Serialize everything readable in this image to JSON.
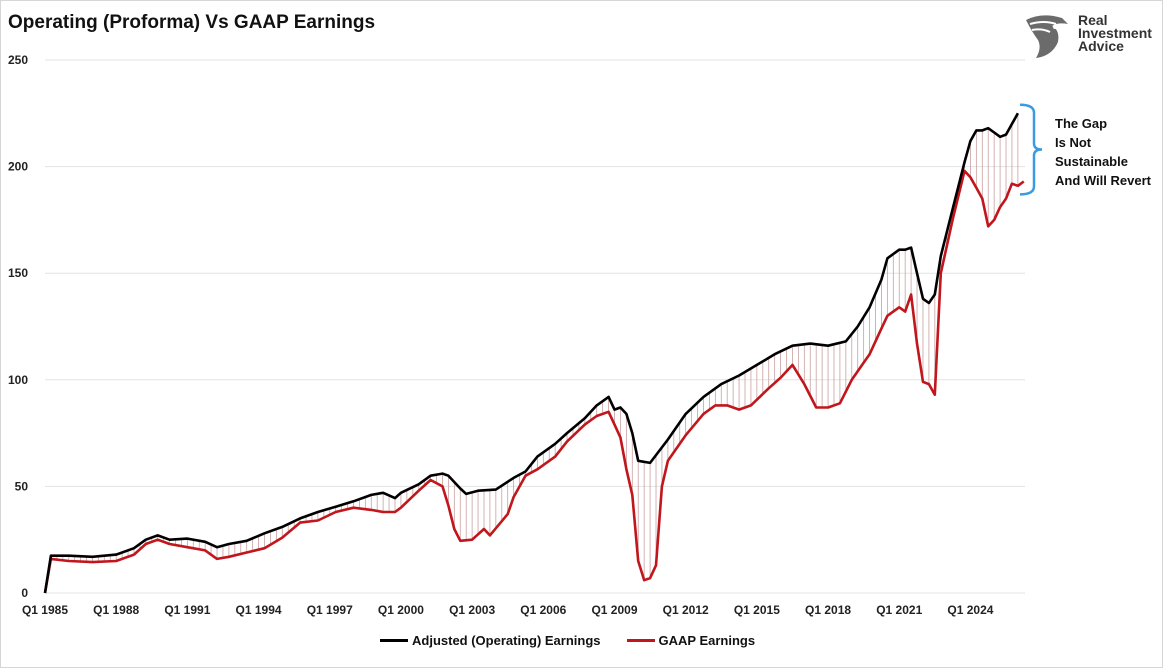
{
  "title": "Operating (Proforma) Vs GAAP Earnings",
  "logo": {
    "line1": "Real",
    "line2": "Investment",
    "line3": "Advice",
    "icon": "eagle-head-icon"
  },
  "annotation": {
    "lines": [
      "The Gap",
      "Is Not",
      "Sustainable",
      "And Will Revert"
    ],
    "bracket_color": "#3b9be0"
  },
  "colors": {
    "operating": "#000000",
    "gaap": "#c0161c",
    "fill_lines": "#bdbdbd"
  },
  "chart_data": {
    "type": "line",
    "title": "Operating (Proforma) Vs GAAP Earnings",
    "xlabel": "",
    "ylabel": "",
    "ylim": [
      0,
      250
    ],
    "yticks": [
      0,
      50,
      100,
      150,
      200,
      250
    ],
    "xticks": [
      "Q1 1985",
      "Q1 1988",
      "Q1 1991",
      "Q1 1994",
      "Q1 1997",
      "Q1 2000",
      "Q1 2003",
      "Q1 2006",
      "Q1 2009",
      "Q1 2012",
      "Q1 2015",
      "Q1 2018",
      "Q1 2021",
      "Q1 2024"
    ],
    "xlim": [
      1985.0,
      2024.5
    ],
    "grid": "horizontal",
    "legend": "bottom-center",
    "series": [
      {
        "name": "Adjusted (Operating) Earnings",
        "color": "#000000",
        "points": [
          [
            1985.0,
            0
          ],
          [
            1985.25,
            17.5
          ],
          [
            1986.0,
            17.5
          ],
          [
            1987.0,
            17
          ],
          [
            1988.0,
            18
          ],
          [
            1988.75,
            21
          ],
          [
            1989.25,
            25
          ],
          [
            1989.75,
            27
          ],
          [
            1990.25,
            25
          ],
          [
            1991.0,
            25.5
          ],
          [
            1991.75,
            24
          ],
          [
            1992.25,
            21.5
          ],
          [
            1992.75,
            23
          ],
          [
            1993.5,
            24.5
          ],
          [
            1994.25,
            28
          ],
          [
            1995.0,
            31
          ],
          [
            1995.75,
            35
          ],
          [
            1996.5,
            38
          ],
          [
            1997.25,
            40.5
          ],
          [
            1998.0,
            43
          ],
          [
            1998.75,
            46
          ],
          [
            1999.25,
            47
          ],
          [
            1999.75,
            44.5
          ],
          [
            2000.0,
            47
          ],
          [
            2000.75,
            51
          ],
          [
            2001.25,
            55
          ],
          [
            2001.75,
            56
          ],
          [
            2002.0,
            55
          ],
          [
            2002.5,
            49
          ],
          [
            2002.75,
            46.5
          ],
          [
            2003.25,
            48
          ],
          [
            2004.0,
            48.5
          ],
          [
            2004.75,
            54
          ],
          [
            2005.25,
            57
          ],
          [
            2005.75,
            64
          ],
          [
            2006.5,
            70
          ],
          [
            2007.0,
            75
          ],
          [
            2007.75,
            82
          ],
          [
            2008.25,
            88
          ],
          [
            2008.75,
            92
          ],
          [
            2009.0,
            86
          ],
          [
            2009.25,
            87
          ],
          [
            2009.5,
            84
          ],
          [
            2009.75,
            75
          ],
          [
            2010.0,
            62
          ],
          [
            2010.5,
            61
          ],
          [
            2011.25,
            72
          ],
          [
            2012.0,
            84
          ],
          [
            2012.75,
            92
          ],
          [
            2013.5,
            98
          ],
          [
            2014.25,
            102
          ],
          [
            2015.0,
            107
          ],
          [
            2015.75,
            112
          ],
          [
            2016.5,
            116
          ],
          [
            2017.25,
            117
          ],
          [
            2018.0,
            116
          ],
          [
            2018.75,
            118
          ],
          [
            2019.25,
            125
          ],
          [
            2019.75,
            134
          ],
          [
            2020.25,
            147
          ],
          [
            2020.5,
            157
          ],
          [
            2021.0,
            161
          ],
          [
            2021.25,
            161
          ],
          [
            2021.5,
            162
          ],
          [
            2021.75,
            150
          ],
          [
            2022.0,
            138
          ],
          [
            2022.25,
            136
          ],
          [
            2022.5,
            140
          ],
          [
            2022.75,
            158
          ],
          [
            2023.25,
            180
          ],
          [
            2023.75,
            202
          ],
          [
            2024.0,
            212
          ],
          [
            2024.25,
            217
          ],
          [
            2024.5,
            217
          ],
          [
            2024.75,
            218
          ],
          [
            2025.0,
            216
          ],
          [
            2025.25,
            214
          ],
          [
            2025.5,
            215
          ],
          [
            2025.75,
            220
          ],
          [
            2026.0,
            225
          ]
        ]
      },
      {
        "name": "GAAP Earnings",
        "color": "#c0161c",
        "points": [
          [
            1985.0,
            0
          ],
          [
            1985.25,
            16
          ],
          [
            1986.0,
            15
          ],
          [
            1987.0,
            14.5
          ],
          [
            1988.0,
            15
          ],
          [
            1988.75,
            18
          ],
          [
            1989.25,
            23
          ],
          [
            1989.75,
            25
          ],
          [
            1990.25,
            23
          ],
          [
            1991.0,
            21.5
          ],
          [
            1991.75,
            20
          ],
          [
            1992.25,
            16
          ],
          [
            1992.75,
            17
          ],
          [
            1993.5,
            19
          ],
          [
            1994.25,
            21
          ],
          [
            1995.0,
            26
          ],
          [
            1995.75,
            33
          ],
          [
            1996.5,
            34
          ],
          [
            1997.25,
            38
          ],
          [
            1998.0,
            40
          ],
          [
            1998.75,
            39
          ],
          [
            1999.25,
            38
          ],
          [
            1999.75,
            38
          ],
          [
            2000.0,
            40
          ],
          [
            2000.75,
            48
          ],
          [
            2001.25,
            53
          ],
          [
            2001.75,
            50
          ],
          [
            2002.0,
            41
          ],
          [
            2002.25,
            30
          ],
          [
            2002.5,
            24.5
          ],
          [
            2003.0,
            25
          ],
          [
            2003.5,
            30
          ],
          [
            2003.75,
            27
          ],
          [
            2004.5,
            37
          ],
          [
            2004.75,
            45
          ],
          [
            2005.25,
            55
          ],
          [
            2005.75,
            58
          ],
          [
            2006.5,
            64
          ],
          [
            2007.0,
            71
          ],
          [
            2007.75,
            79
          ],
          [
            2008.25,
            83
          ],
          [
            2008.75,
            85
          ],
          [
            2009.0,
            79
          ],
          [
            2009.25,
            73
          ],
          [
            2009.5,
            58
          ],
          [
            2009.75,
            46
          ],
          [
            2010.0,
            15
          ],
          [
            2010.25,
            6
          ],
          [
            2010.5,
            7
          ],
          [
            2010.75,
            13
          ],
          [
            2011.0,
            50
          ],
          [
            2011.25,
            62
          ],
          [
            2012.0,
            74
          ],
          [
            2012.75,
            84
          ],
          [
            2013.25,
            88
          ],
          [
            2013.75,
            88
          ],
          [
            2014.25,
            86
          ],
          [
            2014.75,
            88
          ],
          [
            2015.5,
            96
          ],
          [
            2016.0,
            101
          ],
          [
            2016.5,
            107
          ],
          [
            2017.0,
            98
          ],
          [
            2017.5,
            87
          ],
          [
            2018.0,
            87
          ],
          [
            2018.5,
            89
          ],
          [
            2019.0,
            100
          ],
          [
            2019.5,
            108
          ],
          [
            2019.75,
            112
          ],
          [
            2020.25,
            124
          ],
          [
            2020.5,
            130
          ],
          [
            2021.0,
            134
          ],
          [
            2021.25,
            132
          ],
          [
            2021.5,
            140
          ],
          [
            2021.75,
            117
          ],
          [
            2022.0,
            99
          ],
          [
            2022.25,
            98
          ],
          [
            2022.5,
            93
          ],
          [
            2022.75,
            150
          ],
          [
            2023.25,
            175
          ],
          [
            2023.75,
            198
          ],
          [
            2024.0,
            195
          ],
          [
            2024.25,
            190
          ],
          [
            2024.5,
            185
          ],
          [
            2024.75,
            172
          ],
          [
            2025.0,
            175
          ],
          [
            2025.25,
            181
          ],
          [
            2025.5,
            185
          ],
          [
            2025.75,
            192
          ],
          [
            2026.0,
            191
          ],
          [
            2026.25,
            193
          ]
        ]
      }
    ]
  },
  "legend": {
    "items": [
      {
        "label": "Adjusted (Operating) Earnings",
        "color": "#000000"
      },
      {
        "label": "GAAP Earnings",
        "color": "#c0161c"
      }
    ]
  }
}
